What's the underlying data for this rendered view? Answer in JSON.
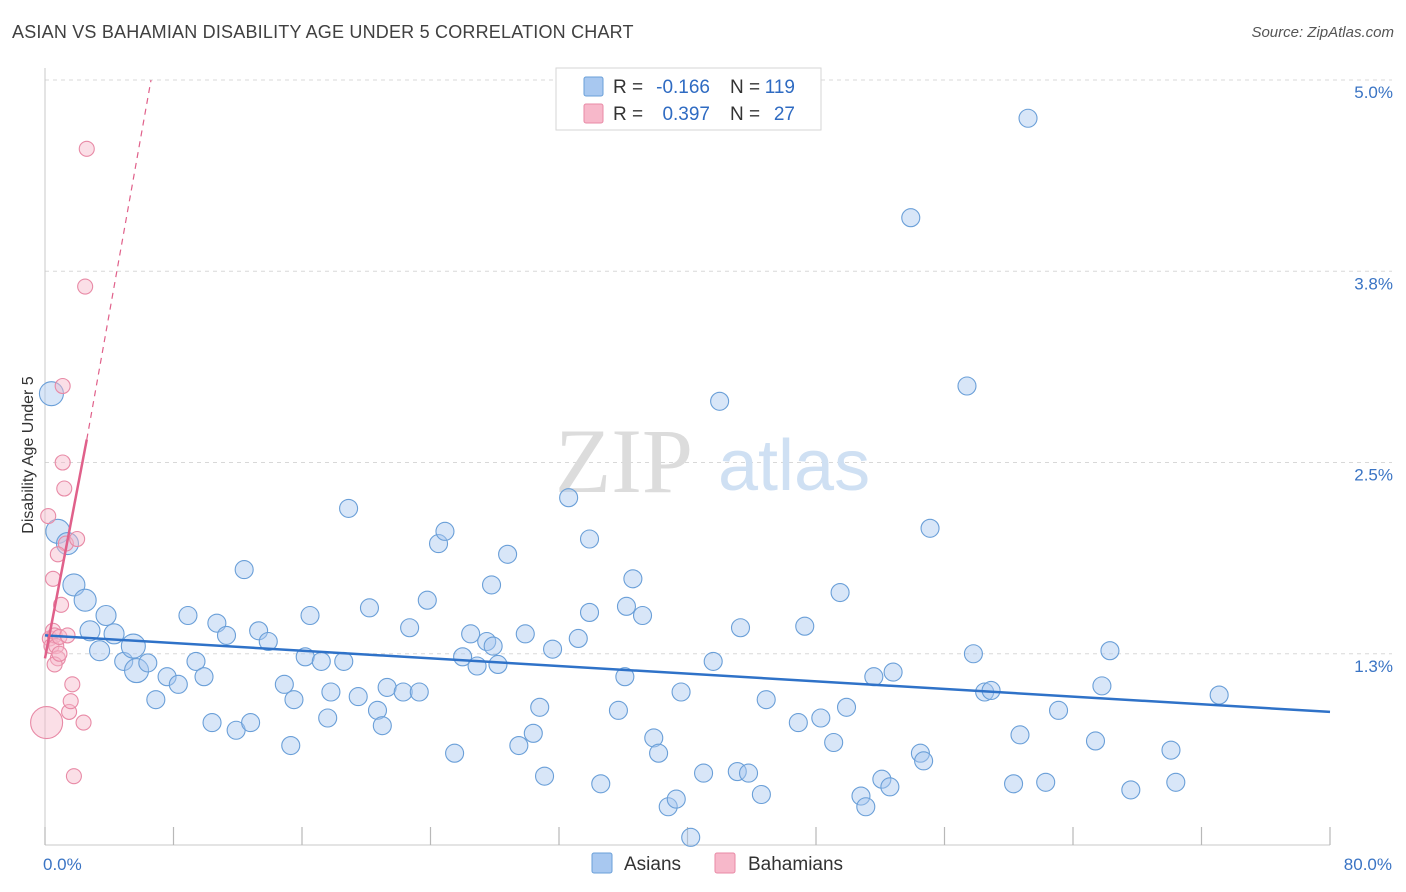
{
  "title": "ASIAN VS BAHAMIAN DISABILITY AGE UNDER 5 CORRELATION CHART",
  "source": "Source: ZipAtlas.com",
  "watermark": {
    "zip": "ZIP",
    "atlas": "atlas"
  },
  "colors": {
    "asian_fill": "#a8c8f0",
    "asian_stroke": "#6a9fd8",
    "asian_line": "#2f72c8",
    "bahamian_fill": "#f7b8ca",
    "bahamian_stroke": "#e88aa6",
    "bahamian_line": "#e0608a",
    "grid": "#d8d8d8",
    "tick_label": "#3a74c4"
  },
  "legend": {
    "rows": [
      {
        "r_label": "R =",
        "r_value": "-0.166",
        "n_label": "N =",
        "n_value": "119",
        "series": "asian"
      },
      {
        "r_label": "R =",
        "r_value": "0.397",
        "n_label": "N =",
        "n_value": "27",
        "series": "bahamian"
      }
    ]
  },
  "bottom_legend": [
    {
      "label": "Asians",
      "series": "asian"
    },
    {
      "label": "Bahamians",
      "series": "bahamian"
    }
  ],
  "chart_data": {
    "type": "scatter",
    "title": "ASIAN VS BAHAMIAN DISABILITY AGE UNDER 5 CORRELATION CHART",
    "xlabel": "",
    "ylabel": "Disability Age Under 5",
    "xlim": [
      0,
      80
    ],
    "ylim": [
      0,
      5.0
    ],
    "y_ticks": [
      {
        "value": 1.25,
        "label": "1.3%"
      },
      {
        "value": 2.5,
        "label": "2.5%"
      },
      {
        "value": 3.75,
        "label": "3.8%"
      },
      {
        "value": 5.0,
        "label": "5.0%"
      }
    ],
    "x_tick_labels": [
      {
        "value": 0,
        "label": "0.0%"
      },
      {
        "value": 80,
        "label": "80.0%"
      }
    ],
    "x_minor_ticks": [
      0,
      8,
      16,
      24,
      32,
      40,
      48,
      56,
      64,
      72,
      80
    ],
    "series": [
      {
        "name": "Asians",
        "key": "asian",
        "R": -0.166,
        "N": 119,
        "trend": {
          "x": [
            0,
            80
          ],
          "y": [
            1.37,
            0.87
          ]
        },
        "points": [
          [
            0.4,
            2.95
          ],
          [
            0.8,
            2.05
          ],
          [
            1.4,
            1.97
          ],
          [
            1.8,
            1.7
          ],
          [
            2.5,
            1.6
          ],
          [
            2.8,
            1.4
          ],
          [
            3.4,
            1.27
          ],
          [
            3.8,
            1.5
          ],
          [
            4.3,
            1.38
          ],
          [
            4.9,
            1.2
          ],
          [
            5.5,
            1.3
          ],
          [
            5.7,
            1.14
          ],
          [
            6.4,
            1.19
          ],
          [
            6.9,
            0.95
          ],
          [
            7.6,
            1.1
          ],
          [
            8.3,
            1.05
          ],
          [
            8.9,
            1.5
          ],
          [
            9.4,
            1.2
          ],
          [
            9.9,
            1.1
          ],
          [
            10.4,
            0.8
          ],
          [
            10.7,
            1.45
          ],
          [
            11.3,
            1.37
          ],
          [
            11.9,
            0.75
          ],
          [
            12.4,
            1.8
          ],
          [
            12.8,
            0.8
          ],
          [
            13.3,
            1.4
          ],
          [
            13.9,
            1.33
          ],
          [
            14.9,
            1.05
          ],
          [
            15.5,
            0.95
          ],
          [
            15.3,
            0.65
          ],
          [
            16.2,
            1.23
          ],
          [
            16.5,
            1.5
          ],
          [
            17.2,
            1.2
          ],
          [
            17.6,
            0.83
          ],
          [
            17.8,
            1.0
          ],
          [
            18.6,
            1.2
          ],
          [
            18.9,
            2.2
          ],
          [
            19.5,
            0.97
          ],
          [
            20.2,
            1.55
          ],
          [
            20.7,
            0.88
          ],
          [
            21.0,
            0.78
          ],
          [
            21.3,
            1.03
          ],
          [
            22.3,
            1.0
          ],
          [
            22.7,
            1.42
          ],
          [
            23.3,
            1.0
          ],
          [
            23.8,
            1.6
          ],
          [
            24.5,
            1.97
          ],
          [
            24.9,
            2.05
          ],
          [
            25.5,
            0.6
          ],
          [
            26.0,
            1.23
          ],
          [
            26.5,
            1.38
          ],
          [
            26.9,
            1.17
          ],
          [
            27.5,
            1.33
          ],
          [
            27.8,
            1.7
          ],
          [
            28.2,
            1.18
          ],
          [
            28.8,
            1.9
          ],
          [
            29.5,
            0.65
          ],
          [
            29.9,
            1.38
          ],
          [
            30.4,
            0.73
          ],
          [
            30.8,
            0.9
          ],
          [
            31.1,
            0.45
          ],
          [
            31.6,
            1.28
          ],
          [
            32.6,
            2.27
          ],
          [
            33.2,
            1.35
          ],
          [
            33.9,
            2.0
          ],
          [
            33.9,
            1.52
          ],
          [
            34.6,
            0.4
          ],
          [
            35.7,
            0.88
          ],
          [
            36.1,
            1.1
          ],
          [
            36.2,
            1.56
          ],
          [
            36.6,
            1.74
          ],
          [
            37.2,
            1.5
          ],
          [
            37.9,
            0.7
          ],
          [
            38.2,
            0.6
          ],
          [
            38.8,
            0.25
          ],
          [
            39.3,
            0.3
          ],
          [
            39.6,
            1.0
          ],
          [
            40.2,
            0.05
          ],
          [
            41.0,
            0.47
          ],
          [
            41.6,
            1.2
          ],
          [
            42.0,
            2.9
          ],
          [
            43.1,
            0.48
          ],
          [
            43.3,
            1.42
          ],
          [
            43.8,
            0.47
          ],
          [
            44.6,
            0.33
          ],
          [
            44.9,
            0.95
          ],
          [
            46.9,
            0.8
          ],
          [
            47.3,
            1.43
          ],
          [
            48.3,
            0.83
          ],
          [
            49.1,
            0.67
          ],
          [
            49.5,
            1.65
          ],
          [
            49.9,
            0.9
          ],
          [
            50.8,
            0.32
          ],
          [
            51.1,
            0.25
          ],
          [
            51.6,
            1.1
          ],
          [
            52.1,
            0.43
          ],
          [
            52.6,
            0.38
          ],
          [
            52.8,
            1.13
          ],
          [
            53.9,
            4.1
          ],
          [
            54.5,
            0.6
          ],
          [
            54.7,
            0.55
          ],
          [
            55.1,
            2.07
          ],
          [
            57.4,
            3.0
          ],
          [
            57.8,
            1.25
          ],
          [
            58.5,
            1.0
          ],
          [
            58.9,
            1.01
          ],
          [
            60.3,
            0.4
          ],
          [
            60.7,
            0.72
          ],
          [
            61.2,
            4.75
          ],
          [
            62.3,
            0.41
          ],
          [
            63.1,
            0.88
          ],
          [
            65.4,
            0.68
          ],
          [
            65.8,
            1.04
          ],
          [
            66.3,
            1.27
          ],
          [
            67.6,
            0.36
          ],
          [
            70.1,
            0.62
          ],
          [
            70.4,
            0.41
          ],
          [
            73.1,
            0.98
          ],
          [
            27.9,
            1.3
          ]
        ]
      },
      {
        "name": "Bahamians",
        "key": "bahamian",
        "R": 0.397,
        "N": 27,
        "trend": {
          "x": [
            0,
            2.6
          ],
          "y": [
            1.22,
            2.65
          ],
          "dashed_x": [
            2.6,
            6.6
          ],
          "dashed_y": [
            2.65,
            5.0
          ]
        },
        "points": [
          [
            0.1,
            0.8
          ],
          [
            0.2,
            2.15
          ],
          [
            0.3,
            1.35
          ],
          [
            0.4,
            1.3
          ],
          [
            0.5,
            1.74
          ],
          [
            0.5,
            1.4
          ],
          [
            0.6,
            1.37
          ],
          [
            0.7,
            1.3
          ],
          [
            0.8,
            1.22
          ],
          [
            0.9,
            1.36
          ],
          [
            1.0,
            1.57
          ],
          [
            1.1,
            3.0
          ],
          [
            1.1,
            2.5
          ],
          [
            1.2,
            2.33
          ],
          [
            1.3,
            1.97
          ],
          [
            1.4,
            1.37
          ],
          [
            1.5,
            0.87
          ],
          [
            1.6,
            0.94
          ],
          [
            1.7,
            1.05
          ],
          [
            1.8,
            0.45
          ],
          [
            2.0,
            2.0
          ],
          [
            2.5,
            3.65
          ],
          [
            2.6,
            4.55
          ],
          [
            2.4,
            0.8
          ],
          [
            0.8,
            1.9
          ],
          [
            0.6,
            1.18
          ],
          [
            0.9,
            1.25
          ]
        ]
      }
    ]
  }
}
